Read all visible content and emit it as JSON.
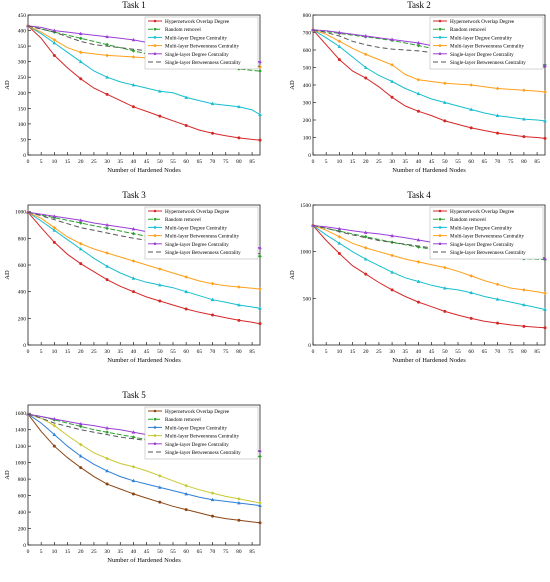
{
  "figure": {
    "x_ticks": [
      0,
      5,
      10,
      15,
      20,
      25,
      30,
      35,
      40,
      45,
      50,
      55,
      60,
      65,
      70,
      75,
      80,
      85
    ],
    "legend_labels": [
      "Hypernetwork Overlap Degree",
      "Random removel",
      "Multi-layer Degree Centrality",
      "Multi-layer Betweenness Centrality",
      "Single-layer Degree Centrality",
      "Single-layer Betweenness Centrality"
    ],
    "series_colors": [
      "#d62728",
      "#2ca02c",
      "#17becf",
      "#ff9f1a",
      "#9b3fd6",
      "#555555"
    ],
    "series_colors_task5": [
      "#8b4513",
      "#2ca02c",
      "#2f7fd6",
      "#c8c832",
      "#9b3fd6",
      "#555555"
    ]
  },
  "chart_data": [
    {
      "type": "line",
      "title": "Task  1",
      "xlabel": "Number of Hardened Nodes",
      "ylabel": "AD",
      "xlim": [
        0,
        88
      ],
      "ylim": [
        0,
        450
      ],
      "yticks": [
        0,
        50,
        100,
        150,
        200,
        250,
        300,
        350,
        400,
        450
      ],
      "x": [
        0,
        5,
        10,
        15,
        20,
        25,
        30,
        35,
        40,
        45,
        50,
        55,
        60,
        65,
        70,
        75,
        80,
        85,
        88
      ],
      "series": [
        {
          "name": "Hypernetwork Overlap Degree",
          "values": [
            415,
            375,
            320,
            280,
            245,
            215,
            195,
            175,
            155,
            140,
            125,
            110,
            95,
            80,
            70,
            62,
            55,
            50,
            48
          ]
        },
        {
          "name": "Random removel",
          "values": [
            415,
            405,
            395,
            385,
            375,
            365,
            355,
            345,
            335,
            325,
            315,
            308,
            300,
            295,
            288,
            282,
            277,
            272,
            270
          ]
        },
        {
          "name": "Multi-layer Degree Centrality",
          "values": [
            415,
            390,
            360,
            330,
            300,
            270,
            250,
            235,
            225,
            215,
            205,
            200,
            185,
            175,
            165,
            160,
            155,
            145,
            130
          ]
        },
        {
          "name": "Multi-layer Betweenness Centrality",
          "values": [
            415,
            395,
            370,
            345,
            330,
            325,
            320,
            318,
            315,
            312,
            310,
            305,
            300,
            295,
            292,
            290,
            288,
            285,
            283
          ]
        },
        {
          "name": "Single-layer Degree Centrality",
          "values": [
            415,
            410,
            400,
            395,
            390,
            385,
            380,
            375,
            370,
            362,
            355,
            345,
            335,
            325,
            318,
            312,
            308,
            303,
            300
          ]
        },
        {
          "name": "Single-layer Betweenness Centrality",
          "values": [
            415,
            405,
            395,
            380,
            365,
            355,
            350,
            345,
            340,
            335,
            328,
            322,
            315,
            308,
            302,
            297,
            292,
            287,
            285
          ]
        }
      ]
    },
    {
      "type": "line",
      "title": "Task  2",
      "xlabel": "Number of Hardened Nodes",
      "ylabel": "AD",
      "xlim": [
        0,
        88
      ],
      "ylim": [
        0,
        800
      ],
      "yticks": [
        0,
        100,
        200,
        300,
        400,
        500,
        600,
        700,
        800
      ],
      "x": [
        0,
        5,
        10,
        15,
        20,
        25,
        30,
        35,
        40,
        45,
        50,
        55,
        60,
        65,
        70,
        75,
        80,
        85,
        88
      ],
      "series": [
        {
          "name": "Hypernetwork Overlap Degree",
          "values": [
            715,
            630,
            545,
            480,
            440,
            390,
            330,
            280,
            250,
            225,
            195,
            175,
            155,
            140,
            125,
            115,
            105,
            100,
            95
          ]
        },
        {
          "name": "Random removel",
          "values": [
            715,
            705,
            695,
            685,
            675,
            665,
            655,
            640,
            625,
            610,
            595,
            580,
            568,
            558,
            550,
            540,
            530,
            520,
            515
          ]
        },
        {
          "name": "Multi-layer Degree Centrality",
          "values": [
            715,
            670,
            620,
            560,
            500,
            455,
            420,
            380,
            350,
            320,
            300,
            280,
            260,
            240,
            225,
            215,
            205,
            200,
            195
          ]
        },
        {
          "name": "Multi-layer Betweenness Centrality",
          "values": [
            715,
            690,
            650,
            610,
            575,
            545,
            515,
            460,
            430,
            420,
            410,
            405,
            400,
            390,
            380,
            375,
            370,
            365,
            360
          ]
        },
        {
          "name": "Single-layer Degree Centrality",
          "values": [
            715,
            710,
            700,
            690,
            680,
            670,
            660,
            650,
            640,
            625,
            610,
            595,
            580,
            565,
            550,
            540,
            530,
            520,
            510
          ]
        },
        {
          "name": "Single-layer Betweenness Centrality",
          "values": [
            715,
            700,
            680,
            650,
            630,
            615,
            605,
            600,
            595,
            585,
            575,
            570,
            565,
            555,
            548,
            540,
            530,
            515,
            500
          ]
        }
      ]
    },
    {
      "type": "line",
      "title": "Task  3",
      "xlabel": "Number of Hardened Nodes",
      "ylabel": "AD",
      "xlim": [
        0,
        88
      ],
      "ylim": [
        0,
        1050
      ],
      "yticks": [
        0,
        200,
        400,
        600,
        800,
        1000
      ],
      "x": [
        0,
        5,
        10,
        15,
        20,
        25,
        30,
        35,
        40,
        45,
        50,
        55,
        60,
        65,
        70,
        75,
        80,
        85,
        88
      ],
      "series": [
        {
          "name": "Hypernetwork Overlap Degree",
          "values": [
            995,
            880,
            770,
            680,
            610,
            550,
            490,
            440,
            400,
            360,
            330,
            300,
            270,
            245,
            225,
            205,
            185,
            170,
            160
          ]
        },
        {
          "name": "Random removel",
          "values": [
            995,
            975,
            955,
            935,
            915,
            895,
            875,
            855,
            835,
            815,
            795,
            775,
            755,
            735,
            715,
            700,
            685,
            670,
            665
          ]
        },
        {
          "name": "Multi-layer Degree Centrality",
          "values": [
            995,
            930,
            860,
            790,
            720,
            650,
            590,
            540,
            500,
            470,
            450,
            430,
            400,
            370,
            340,
            320,
            300,
            285,
            275
          ]
        },
        {
          "name": "Multi-layer Betweenness Centrality",
          "values": [
            995,
            950,
            880,
            810,
            760,
            720,
            690,
            660,
            630,
            600,
            570,
            540,
            510,
            480,
            460,
            445,
            435,
            425,
            420
          ]
        },
        {
          "name": "Single-layer Degree Centrality",
          "values": [
            995,
            980,
            965,
            950,
            935,
            915,
            900,
            885,
            870,
            850,
            830,
            810,
            790,
            775,
            760,
            750,
            740,
            735,
            730
          ]
        },
        {
          "name": "Single-layer Betweenness Centrality",
          "values": [
            995,
            970,
            940,
            910,
            880,
            860,
            840,
            820,
            800,
            785,
            770,
            755,
            740,
            730,
            720,
            710,
            700,
            690,
            685
          ]
        }
      ]
    },
    {
      "type": "line",
      "title": "Task  4",
      "xlabel": "Number of Hardened Nodes",
      "ylabel": "AD",
      "xlim": [
        0,
        88
      ],
      "ylim": [
        0,
        1500
      ],
      "yticks": [
        0,
        500,
        1000,
        1500
      ],
      "x": [
        0,
        5,
        10,
        15,
        20,
        25,
        30,
        35,
        40,
        45,
        50,
        55,
        60,
        65,
        70,
        75,
        80,
        85,
        88
      ],
      "series": [
        {
          "name": "Hypernetwork Overlap Degree",
          "values": [
            1280,
            1120,
            980,
            850,
            760,
            670,
            590,
            520,
            460,
            410,
            360,
            320,
            285,
            255,
            235,
            215,
            200,
            190,
            185
          ]
        },
        {
          "name": "Random removel",
          "values": [
            1280,
            1250,
            1220,
            1190,
            1160,
            1130,
            1100,
            1075,
            1050,
            1025,
            1000,
            980,
            965,
            950,
            940,
            930,
            925,
            920,
            915
          ]
        },
        {
          "name": "Multi-layer Degree Centrality",
          "values": [
            1280,
            1180,
            1090,
            1000,
            920,
            850,
            780,
            720,
            680,
            640,
            610,
            590,
            560,
            520,
            490,
            460,
            430,
            400,
            380
          ]
        },
        {
          "name": "Multi-layer Betweenness Centrality",
          "values": [
            1280,
            1230,
            1160,
            1090,
            1040,
            1000,
            960,
            920,
            890,
            860,
            830,
            790,
            740,
            690,
            650,
            610,
            590,
            570,
            555
          ]
        },
        {
          "name": "Single-layer Degree Centrality",
          "values": [
            1280,
            1265,
            1245,
            1225,
            1205,
            1190,
            1170,
            1150,
            1125,
            1100,
            1075,
            1050,
            1020,
            990,
            965,
            945,
            935,
            930,
            925
          ]
        },
        {
          "name": "Single-layer Betweenness Centrality",
          "values": [
            1280,
            1250,
            1215,
            1180,
            1150,
            1120,
            1100,
            1080,
            1060,
            1040,
            1020,
            1005,
            990,
            975,
            965,
            955,
            945,
            940,
            935
          ]
        }
      ]
    },
    {
      "type": "line",
      "title": "Task  5",
      "xlabel": "Number of Hardened Nodes",
      "ylabel": "AD",
      "xlim": [
        0,
        88
      ],
      "ylim": [
        0,
        1700
      ],
      "yticks": [
        0,
        200,
        400,
        600,
        800,
        1000,
        1200,
        1400,
        1600
      ],
      "x": [
        0,
        5,
        10,
        15,
        20,
        25,
        30,
        35,
        40,
        45,
        50,
        55,
        60,
        65,
        70,
        75,
        80,
        85,
        88
      ],
      "series": [
        {
          "name": "Hypernetwork Overlap Degree",
          "values": [
            1590,
            1380,
            1200,
            1060,
            940,
            830,
            740,
            680,
            620,
            570,
            520,
            470,
            430,
            390,
            350,
            320,
            300,
            280,
            270
          ]
        },
        {
          "name": "Random removel",
          "values": [
            1590,
            1560,
            1520,
            1480,
            1440,
            1400,
            1370,
            1340,
            1310,
            1280,
            1250,
            1220,
            1190,
            1160,
            1130,
            1110,
            1090,
            1080,
            1075
          ]
        },
        {
          "name": "Multi-layer Degree Centrality",
          "values": [
            1590,
            1480,
            1340,
            1200,
            1080,
            980,
            900,
            830,
            780,
            740,
            700,
            660,
            620,
            580,
            550,
            530,
            510,
            490,
            480
          ]
        },
        {
          "name": "Multi-layer Betweenness Centrality",
          "values": [
            1590,
            1540,
            1450,
            1330,
            1220,
            1120,
            1050,
            990,
            950,
            900,
            840,
            780,
            720,
            670,
            630,
            590,
            560,
            530,
            510
          ]
        },
        {
          "name": "Single-layer Degree Centrality",
          "values": [
            1590,
            1560,
            1530,
            1500,
            1470,
            1450,
            1420,
            1400,
            1370,
            1340,
            1310,
            1270,
            1230,
            1200,
            1180,
            1170,
            1160,
            1150,
            1145
          ]
        },
        {
          "name": "Single-layer Betweenness Centrality",
          "values": [
            1590,
            1540,
            1480,
            1440,
            1400,
            1370,
            1340,
            1310,
            1290,
            1270,
            1240,
            1220,
            1200,
            1185,
            1170,
            1160,
            1150,
            1145,
            1140
          ]
        }
      ]
    }
  ]
}
